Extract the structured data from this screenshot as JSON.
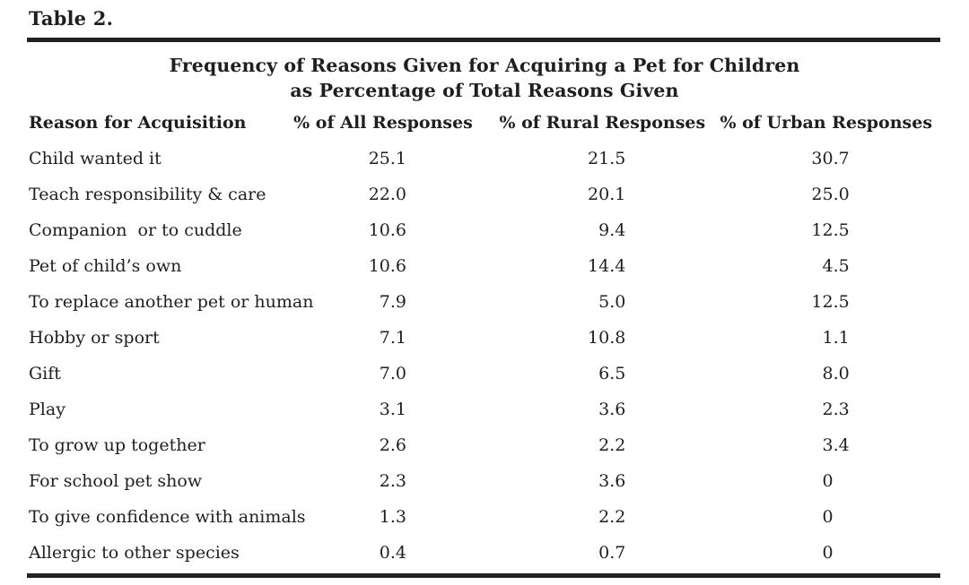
{
  "page": {
    "label": "Table 2.",
    "title_line1": "Frequency of Reasons Given for Acquiring a Pet for Children",
    "title_line2": "as Percentage of Total Reasons Given"
  },
  "table": {
    "columns": [
      "Reason for Acquisition",
      "% of All Responses",
      "% of Rural Responses",
      "% of Urban Responses"
    ],
    "rows": [
      {
        "reason": "Child wanted it",
        "all": "25.1",
        "rural": "21.5",
        "urban": "30.7"
      },
      {
        "reason": "Teach responsibility & care",
        "all": "22.0",
        "rural": "20.1",
        "urban": "25.0"
      },
      {
        "reason": "Companion  or to cuddle",
        "all": "10.6",
        "rural": "9.4",
        "urban": "12.5"
      },
      {
        "reason": "Pet of child’s own",
        "all": "10.6",
        "rural": "14.4",
        "urban": "4.5"
      },
      {
        "reason": "To replace another pet or human",
        "all": "7.9",
        "rural": "5.0",
        "urban": "12.5"
      },
      {
        "reason": "Hobby or sport",
        "all": "7.1",
        "rural": "10.8",
        "urban": "1.1"
      },
      {
        "reason": "Gift",
        "all": "7.0",
        "rural": "6.5",
        "urban": "8.0"
      },
      {
        "reason": "Play",
        "all": "3.1",
        "rural": "3.6",
        "urban": "2.3"
      },
      {
        "reason": "To grow up together",
        "all": "2.6",
        "rural": "2.2",
        "urban": "3.4"
      },
      {
        "reason": "For school pet show",
        "all": "2.3",
        "rural": "3.6",
        "urban": "0"
      },
      {
        "reason": "To give confidence with animals",
        "all": "1.3",
        "rural": "2.2",
        "urban": "0"
      },
      {
        "reason": "Allergic to other species",
        "all": "0.4",
        "rural": "0.7",
        "urban": "0"
      }
    ]
  },
  "colors": {
    "text": "#1f1f1f",
    "rule": "#222222",
    "background": "#ffffff"
  }
}
